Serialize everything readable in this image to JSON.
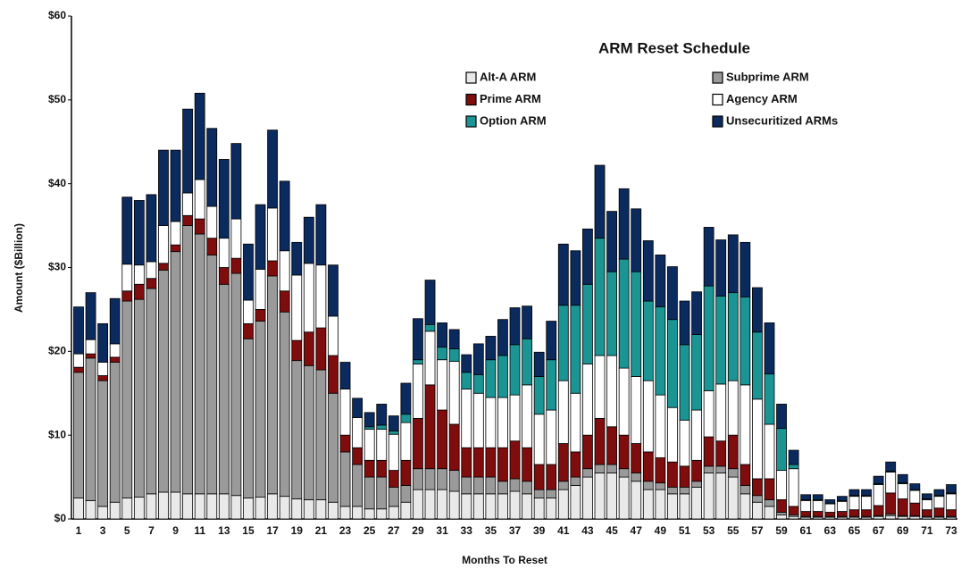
{
  "chart_data": {
    "type": "stacked_bar",
    "title": "ARM Reset Schedule",
    "ylabel": "Amount ($Billion)",
    "xlabel": "Months To Reset",
    "categories": [
      "1",
      null,
      "3",
      null,
      "5",
      null,
      "7",
      null,
      "9",
      null,
      "11",
      null,
      "13",
      null,
      "15",
      null,
      "17",
      null,
      "19",
      null,
      "21",
      null,
      "23",
      null,
      "25",
      null,
      "27",
      null,
      "29",
      null,
      "31",
      null,
      "33",
      null,
      "35",
      null,
      "37",
      null,
      "39",
      null,
      "41",
      null,
      "43",
      null,
      "45",
      null,
      "47",
      null,
      "49",
      null,
      "51",
      null,
      "53",
      null,
      "55",
      null,
      "57",
      null,
      "59",
      null,
      "61",
      null,
      "63",
      null,
      "65",
      null,
      "67",
      null,
      "69",
      null,
      "71",
      null,
      "73"
    ],
    "series": [
      {
        "name": "Alt-A ARM",
        "color": "#e9e9e9",
        "values": [
          2.5,
          2.2,
          1.5,
          2,
          2.5,
          2.6,
          3,
          3.2,
          3.2,
          3,
          3,
          3,
          3,
          2.8,
          2.5,
          2.6,
          3,
          2.7,
          2.4,
          2.3,
          2.3,
          2,
          1.5,
          1.5,
          1.2,
          1.2,
          1.5,
          2,
          3.5,
          3.5,
          3.5,
          3.3,
          3,
          3,
          3,
          3,
          3.3,
          3,
          2.5,
          2.5,
          3.5,
          4,
          5,
          5.5,
          5.5,
          5,
          4.5,
          3.5,
          3.5,
          3,
          3,
          3.8,
          5.5,
          5.5,
          5,
          3,
          2,
          1.5,
          0.5,
          0.3,
          0.2,
          0.2,
          0.2,
          0.2,
          0.2,
          0.2,
          0.3,
          0.4,
          0.3,
          0.3,
          0.2,
          0.2,
          0.2
        ]
      },
      {
        "name": "Subprime ARM",
        "color": "#9a9a9a",
        "values": [
          15,
          17,
          15,
          16.7,
          23.5,
          23.6,
          24.5,
          26.5,
          28.7,
          32,
          31,
          28.5,
          25,
          26.5,
          19,
          21,
          26,
          22,
          16.5,
          16,
          15.5,
          13,
          6.5,
          5,
          3.8,
          3.8,
          2.3,
          2,
          2.5,
          2.5,
          2.5,
          2.5,
          2,
          2,
          2,
          1.5,
          1.5,
          1.5,
          1,
          1,
          1,
          1,
          1,
          1,
          1,
          1,
          1,
          1,
          0.8,
          0.8,
          0.8,
          0.7,
          0.8,
          0.8,
          1,
          1,
          0.8,
          0.8,
          0.3,
          0.2,
          0.1,
          0.1,
          0.1,
          0.1,
          0.1,
          0.1,
          0.1,
          0.2,
          0.1,
          0.1,
          0.1,
          0.1,
          0.1
        ]
      },
      {
        "name": "Prime ARM",
        "color": "#7f0d0d",
        "values": [
          0.6,
          0.5,
          0.6,
          0.6,
          1.2,
          1.8,
          1.2,
          0.8,
          0.8,
          1.2,
          1.8,
          2,
          2,
          1.8,
          1.8,
          1.4,
          1.8,
          2.5,
          2.4,
          4,
          5,
          4.5,
          2,
          2,
          2,
          2,
          2,
          3,
          6,
          10,
          7,
          5.5,
          3.5,
          3.5,
          3.5,
          4,
          4.5,
          4,
          3,
          3,
          4.5,
          3,
          4,
          5.5,
          4.5,
          4,
          3.5,
          3.5,
          3,
          3,
          2.5,
          2.5,
          3.5,
          3,
          4,
          2.5,
          2,
          2.5,
          1.5,
          1,
          0.6,
          0.6,
          0.5,
          0.6,
          0.8,
          0.8,
          1.2,
          2.5,
          2,
          1.5,
          0.8,
          1,
          0.8
        ]
      },
      {
        "name": "Agency ARM",
        "color": "#ffffff",
        "values": [
          1.6,
          1.7,
          1.6,
          1.6,
          3.2,
          2.3,
          2,
          4.5,
          2.8,
          2.7,
          4.7,
          3.8,
          3.5,
          4.7,
          2.8,
          4.8,
          6.3,
          4.8,
          7.8,
          8.2,
          7.5,
          4.7,
          5.5,
          3.6,
          3.7,
          3.7,
          4.3,
          4.5,
          6.5,
          6.4,
          6,
          7.5,
          7,
          6.5,
          6,
          6,
          5.5,
          7.5,
          6,
          6.5,
          7.5,
          7,
          8.5,
          7.5,
          8.5,
          8,
          8,
          8.5,
          7.5,
          6.5,
          5.5,
          6,
          5.5,
          6.8,
          6.5,
          9.5,
          9.5,
          6.5,
          3.5,
          4.5,
          1.3,
          1.3,
          1,
          1.2,
          1.6,
          1.6,
          2.5,
          2.5,
          1.8,
          1.5,
          1.2,
          1.4,
          1.9
        ]
      },
      {
        "name": "Option ARM",
        "color": "#1b9494",
        "values": [
          0,
          0,
          0,
          0,
          0,
          0,
          0,
          0,
          0,
          0,
          0,
          0,
          0,
          0,
          0,
          0,
          0,
          0,
          0,
          0,
          0,
          0,
          0,
          0,
          0.3,
          0.5,
          0.4,
          1,
          0.5,
          0.8,
          1.5,
          1.5,
          2,
          2.2,
          4.5,
          5,
          6,
          5.5,
          4.5,
          6,
          9,
          10.5,
          9.5,
          14,
          10,
          13,
          12.5,
          9.5,
          10.5,
          10.5,
          9,
          9,
          12.5,
          10.5,
          10.5,
          10.5,
          8,
          6,
          5,
          0.5,
          0.1,
          0.1,
          0.1,
          0.1,
          0.1,
          0.1,
          0.1,
          0.1,
          0.1,
          0.1,
          0.1,
          0.1,
          0.1
        ]
      },
      {
        "name": "Unsecuritized ARMs",
        "color": "#0b2a5e",
        "values": [
          5.6,
          5.6,
          4.6,
          5.4,
          8,
          7.7,
          8,
          9,
          8.5,
          10,
          10.3,
          9.3,
          9.4,
          9,
          6.7,
          7.7,
          9.3,
          8.3,
          3.9,
          5.5,
          7.2,
          6.1,
          3.2,
          2.3,
          1.7,
          2.5,
          1.8,
          3.7,
          4.9,
          5.3,
          2.9,
          2.3,
          2.1,
          3.7,
          2.8,
          4.3,
          4.4,
          3.9,
          2.9,
          4.6,
          7.3,
          6.5,
          6.6,
          8.7,
          7.2,
          8.4,
          7.5,
          7.2,
          6.2,
          6.3,
          5.2,
          5.1,
          7,
          6.7,
          6.9,
          6.5,
          5.3,
          6.1,
          2.9,
          1.7,
          0.6,
          0.6,
          0.4,
          0.5,
          0.7,
          0.7,
          0.9,
          1.1,
          1,
          0.7,
          0.6,
          0.7,
          1
        ]
      }
    ],
    "ylim": [
      0,
      60
    ],
    "yticks": [
      {
        "value": 0,
        "label": "$0"
      },
      {
        "value": 10,
        "label": "$10"
      },
      {
        "value": 20,
        "label": "$20"
      },
      {
        "value": 30,
        "label": "$30"
      },
      {
        "value": 40,
        "label": "$40"
      },
      {
        "value": 50,
        "label": "$50"
      },
      {
        "value": 60,
        "label": "$60"
      }
    ],
    "grid": false,
    "legend": "top-right"
  }
}
